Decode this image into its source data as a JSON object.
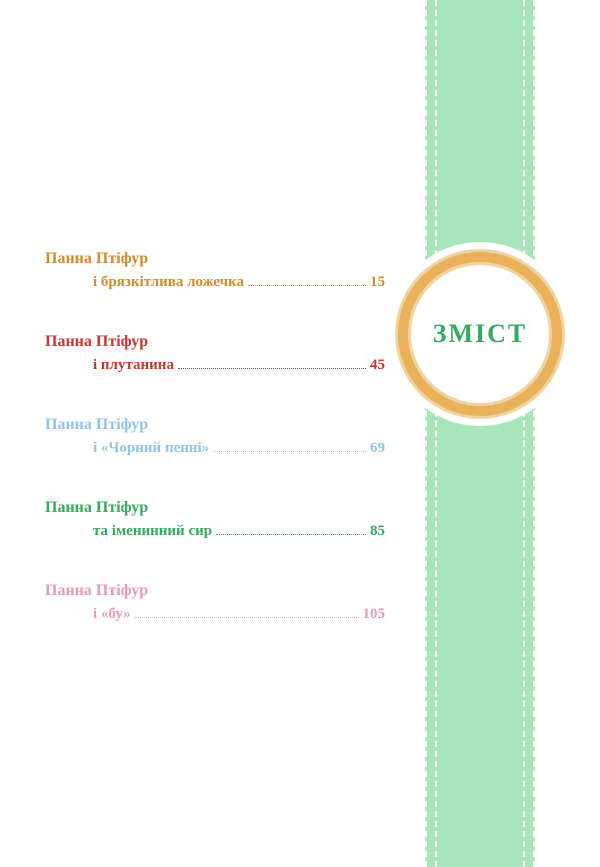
{
  "heading": {
    "text": "ЗМІСТ",
    "color": "#3aa860"
  },
  "ribbon": {
    "background": "#a7e6b8"
  },
  "ring": {
    "color": "#e8b15a"
  },
  "items": [
    {
      "title": "Панна Птіфур",
      "subtitle": "і брязкітлива ложечка",
      "page": "15",
      "color": "#d18a2e",
      "dot_color": "#d18a2e"
    },
    {
      "title": "Панна Птіфур",
      "subtitle": "і плутанина",
      "page": "45",
      "color": "#c9362f",
      "dot_color": "#c9362f"
    },
    {
      "title": "Панна Птіфур",
      "subtitle": "і «Чорний пенні»",
      "page": "69",
      "color": "#8fc5e8",
      "dot_color": "#8fc5e8"
    },
    {
      "title": "Панна Птіфур",
      "subtitle": "та іменинний сир",
      "page": "85",
      "color": "#3aa860",
      "dot_color": "#3aa860"
    },
    {
      "title": "Панна Птіфур",
      "subtitle": "і «бу»",
      "page": "105",
      "color": "#e79bb0",
      "dot_color": "#e79bb0"
    }
  ]
}
